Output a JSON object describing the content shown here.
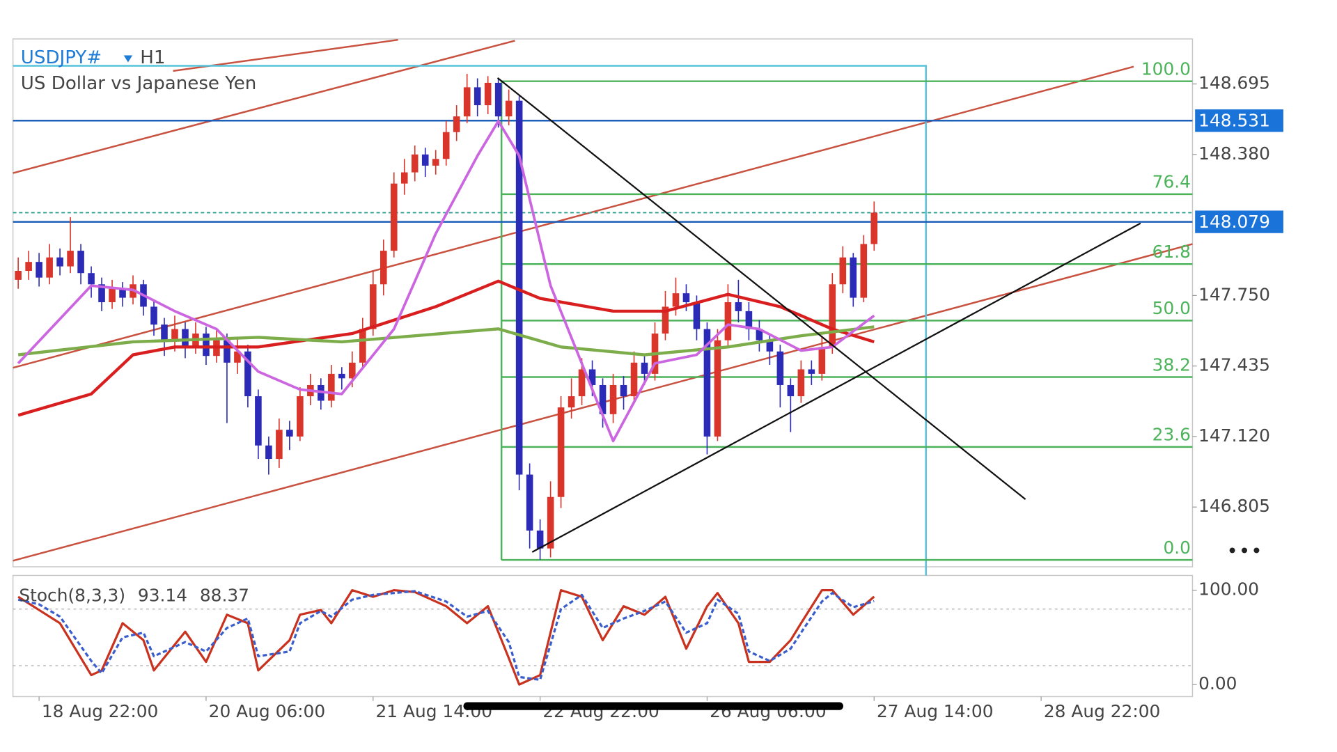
{
  "chart_data": {
    "type": "candlestick",
    "symbol": "USDJPY#",
    "timeframe": "H1",
    "subtitle": "US Dollar vs Japanese Yen",
    "open": [
      147.82,
      147.86,
      147.9,
      147.83,
      147.92,
      147.88,
      147.95,
      147.85,
      147.8,
      147.72,
      147.78,
      147.74,
      147.8,
      147.7,
      147.62,
      147.55,
      147.6,
      147.52,
      147.58,
      147.48,
      147.55,
      147.45,
      147.5,
      147.3,
      147.08,
      147.02,
      147.15,
      147.12,
      147.3,
      147.35,
      147.28,
      147.4,
      147.38,
      147.45,
      147.6,
      147.8,
      147.95,
      148.25,
      148.3,
      148.38,
      148.33,
      148.36,
      148.48,
      148.55,
      148.68,
      148.6,
      148.7,
      148.55,
      148.62,
      146.95,
      146.7,
      146.62,
      146.85,
      147.25,
      147.3,
      147.42,
      147.35,
      147.22,
      147.35,
      147.3,
      147.45,
      147.4,
      147.58,
      147.7,
      147.76,
      147.72,
      147.6,
      147.12,
      147.55,
      147.72,
      147.68,
      147.6,
      147.55,
      147.5,
      147.35,
      147.3,
      147.42,
      147.4,
      147.52,
      147.8,
      147.92,
      147.74,
      147.98
    ],
    "high": [
      147.92,
      147.95,
      147.94,
      147.98,
      147.96,
      148.1,
      147.98,
      147.88,
      147.83,
      147.82,
      147.81,
      147.84,
      147.82,
      147.73,
      147.65,
      147.66,
      147.63,
      147.63,
      147.61,
      147.6,
      147.58,
      147.56,
      147.53,
      147.33,
      147.12,
      147.2,
      147.19,
      147.34,
      147.4,
      147.38,
      147.44,
      147.43,
      147.5,
      147.65,
      147.86,
      148.0,
      148.3,
      148.36,
      148.42,
      148.41,
      148.4,
      148.53,
      148.6,
      148.74,
      148.72,
      148.73,
      148.72,
      148.67,
      148.64,
      147.0,
      146.75,
      146.92,
      147.3,
      147.38,
      147.47,
      147.46,
      147.38,
      147.4,
      147.39,
      147.5,
      147.49,
      147.63,
      147.77,
      147.83,
      147.8,
      147.75,
      147.63,
      147.6,
      147.8,
      147.82,
      147.72,
      147.64,
      147.58,
      147.53,
      147.38,
      147.46,
      147.46,
      147.57,
      147.85,
      147.97,
      147.94,
      148.02,
      148.17
    ],
    "low": [
      147.78,
      147.82,
      147.79,
      147.8,
      147.84,
      147.85,
      147.8,
      147.74,
      147.68,
      147.69,
      147.7,
      147.71,
      147.66,
      147.57,
      147.48,
      147.5,
      147.47,
      147.49,
      147.44,
      147.45,
      147.18,
      147.4,
      147.25,
      147.02,
      146.95,
      146.98,
      147.06,
      147.1,
      147.26,
      147.24,
      147.25,
      147.33,
      147.34,
      147.42,
      147.57,
      147.75,
      147.92,
      148.2,
      148.26,
      148.28,
      148.29,
      148.33,
      148.44,
      148.52,
      148.55,
      148.56,
      148.5,
      148.51,
      146.88,
      146.62,
      146.57,
      146.58,
      146.8,
      147.2,
      147.26,
      147.3,
      147.16,
      147.18,
      147.24,
      147.27,
      147.35,
      147.37,
      147.55,
      147.66,
      147.68,
      147.55,
      147.04,
      147.1,
      147.52,
      147.63,
      147.55,
      147.5,
      147.44,
      147.25,
      147.14,
      147.27,
      147.35,
      147.37,
      147.49,
      147.76,
      147.7,
      147.72,
      147.95
    ],
    "close": [
      147.86,
      147.9,
      147.83,
      147.92,
      147.88,
      147.95,
      147.85,
      147.8,
      147.72,
      147.78,
      147.74,
      147.8,
      147.7,
      147.62,
      147.55,
      147.6,
      147.52,
      147.58,
      147.48,
      147.55,
      147.45,
      147.5,
      147.3,
      147.08,
      147.02,
      147.15,
      147.12,
      147.3,
      147.35,
      147.28,
      147.4,
      147.38,
      147.45,
      147.6,
      147.8,
      147.95,
      148.25,
      148.3,
      148.38,
      148.33,
      148.36,
      148.48,
      148.55,
      148.68,
      148.6,
      148.7,
      148.55,
      148.62,
      146.95,
      146.7,
      146.62,
      146.85,
      147.25,
      147.3,
      147.42,
      147.35,
      147.22,
      147.35,
      147.3,
      147.45,
      147.4,
      147.58,
      147.7,
      147.76,
      147.72,
      147.6,
      147.12,
      147.55,
      147.72,
      147.68,
      147.6,
      147.55,
      147.5,
      147.35,
      147.3,
      147.42,
      147.4,
      147.52,
      147.8,
      147.92,
      147.74,
      147.98,
      148.12
    ],
    "up_color": "#d9352a",
    "down_color": "#2b2bb8",
    "xlim": [
      -0.5,
      112.5
    ],
    "xticks": [
      {
        "value": 2,
        "label": "18 Aug 22:00"
      },
      {
        "value": 18,
        "label": "20 Aug 06:00"
      },
      {
        "value": 34,
        "label": "21 Aug 14:00"
      },
      {
        "value": 50,
        "label": "22 Aug 22:00"
      },
      {
        "value": 66,
        "label": "26 Aug 06:00"
      },
      {
        "value": 82,
        "label": "27 Aug 14:00"
      },
      {
        "value": 98,
        "label": "28 Aug 22:00"
      }
    ],
    "ylim": [
      146.538,
      148.896
    ],
    "yticks": [
      148.695,
      {
        "value": 148.38,
        "label": "148.380"
      },
      {
        "value": 147.75,
        "label": "147.750"
      },
      147.435,
      {
        "value": 147.12,
        "label": "147.120"
      },
      146.805
    ],
    "overlays": [
      {
        "color": "#d81e1e",
        "width": 3.5,
        "x": [
          0,
          7,
          11,
          15,
          23,
          32,
          40,
          46,
          50,
          57,
          62,
          68,
          73,
          78,
          82
        ],
        "values": [
          147.215,
          147.31,
          147.485,
          147.52,
          147.52,
          147.58,
          147.7,
          147.814,
          147.737,
          147.68,
          147.68,
          147.755,
          147.7,
          147.6,
          147.543
        ]
      },
      {
        "color": "#7cad4a",
        "width": 3.5,
        "x": [
          0,
          11,
          23,
          31,
          46,
          52,
          60,
          68,
          75,
          82
        ],
        "values": [
          147.485,
          147.543,
          147.563,
          147.543,
          147.601,
          147.52,
          147.485,
          147.52,
          147.57,
          147.61
        ]
      },
      {
        "color": "#cc66e0",
        "width": 3,
        "x": [
          0,
          7,
          11,
          15,
          19,
          23,
          27,
          31,
          36,
          40,
          44,
          46,
          48,
          51,
          55,
          57,
          61,
          65,
          68,
          71,
          75,
          78,
          82
        ],
        "values": [
          147.447,
          147.794,
          147.775,
          147.68,
          147.6,
          147.41,
          147.33,
          147.31,
          147.6,
          148.026,
          148.374,
          148.529,
          148.374,
          147.794,
          147.33,
          147.1,
          147.447,
          147.485,
          147.62,
          147.6,
          147.504,
          147.52,
          147.66
        ]
      }
    ],
    "hlines": [
      148.531,
      148.079
    ],
    "hline_color": "#1c5fb8",
    "label_color": "#1a73d9",
    "fibonacci": {
      "high": 148.707,
      "low": 146.569,
      "start_x": 46.3,
      "color": "#4cb35a",
      "levels": [
        {
          "value": 100,
          "label": "100.0"
        },
        {
          "value": 76.4,
          "label": "76.4"
        },
        {
          "value": 61.8,
          "label": "61.8"
        },
        {
          "value": 50,
          "label": "50.0"
        },
        {
          "value": 38.2,
          "label": "38.2"
        },
        {
          "value": 23.6,
          "label": "23.6"
        },
        {
          "value": 0,
          "label": "0.0"
        }
      ]
    },
    "stochastic": {
      "label": "Stoch(8,3,3)",
      "ylim": [
        -12.8,
        115.6
      ],
      "yticks": [
        {
          "value": 100,
          "label": "100.00"
        },
        {
          "value": 0,
          "label": "0.00"
        }
      ],
      "levels": [
        80,
        20
      ],
      "series": [
        {
          "color": "#c8321e",
          "dashed": false,
          "x": [
            0,
            2,
            4,
            7,
            8,
            10,
            12,
            13,
            16,
            18,
            20,
            22,
            23,
            26,
            27,
            29,
            30,
            32,
            34,
            36,
            38,
            41,
            43,
            45,
            47,
            48,
            50,
            52,
            54,
            56,
            58,
            60,
            62,
            64,
            66,
            67,
            69,
            70,
            72,
            74,
            75,
            77,
            78,
            80,
            82
          ],
          "values": [
            93,
            79,
            65,
            10,
            15,
            65,
            47,
            15,
            56,
            24,
            74,
            65,
            15,
            47,
            74,
            79,
            65,
            100,
            93,
            100,
            98,
            83,
            65,
            83,
            28,
            0,
            10,
            100,
            93,
            47,
            83,
            74,
            93,
            38,
            83,
            97,
            65,
            24,
            24,
            47,
            65,
            100,
            100,
            74,
            93.14
          ]
        },
        {
          "color": "#3a5fcd",
          "dashed": true,
          "x": [
            0,
            2,
            4,
            7,
            8,
            10,
            12,
            13,
            16,
            18,
            20,
            22,
            23,
            26,
            27,
            29,
            30,
            32,
            34,
            36,
            38,
            41,
            43,
            45,
            47,
            48,
            50,
            52,
            54,
            56,
            58,
            60,
            62,
            64,
            66,
            67,
            69,
            70,
            72,
            74,
            75,
            77,
            78,
            80,
            82
          ],
          "values": [
            90,
            85,
            72,
            25,
            12,
            50,
            55,
            30,
            45,
            35,
            60,
            70,
            30,
            35,
            65,
            78,
            72,
            90,
            95,
            97,
            99,
            88,
            72,
            78,
            45,
            8,
            5,
            80,
            95,
            60,
            70,
            78,
            88,
            55,
            65,
            90,
            75,
            35,
            25,
            38,
            55,
            88,
            97,
            82,
            88.37
          ]
        }
      ]
    }
  }
}
